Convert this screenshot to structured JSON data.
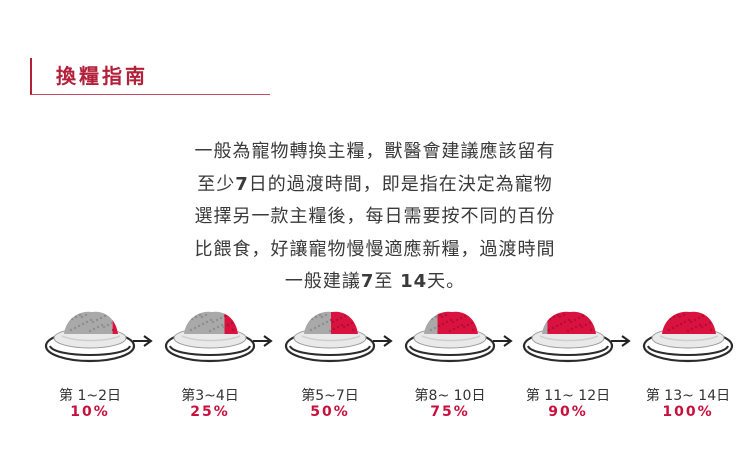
{
  "heading": {
    "title": "換糧指南",
    "accent_color": "#b3203a"
  },
  "intro": {
    "lines": [
      {
        "parts": [
          "一般為寵物轉換主糧，獸醫會建議應該留有"
        ]
      },
      {
        "parts": [
          "至少",
          "7",
          "日的過渡時間，即是指在決定為寵物"
        ]
      },
      {
        "parts": [
          "選擇另一款主糧後，每日需要按不同的百份"
        ]
      },
      {
        "parts": [
          "比餵食，好讓寵物慢慢適應新糧，過渡時間"
        ]
      },
      {
        "parts": [
          "一般建議",
          "7",
          "至 ",
          "14",
          "天。"
        ]
      }
    ]
  },
  "steps": [
    {
      "label": "第 1~2日",
      "percent": "10%",
      "new_food_fraction": 0.1
    },
    {
      "label": "第3~4日",
      "percent": "25%",
      "new_food_fraction": 0.25
    },
    {
      "label": "第5~7日",
      "percent": "50%",
      "new_food_fraction": 0.5
    },
    {
      "label": "第8~ 10日",
      "percent": "75%",
      "new_food_fraction": 0.75
    },
    {
      "label": "第 11~ 12日",
      "percent": "90%",
      "new_food_fraction": 0.9
    },
    {
      "label": "第 13~ 14日",
      "percent": "100%",
      "new_food_fraction": 1.0
    }
  ],
  "colors": {
    "new_food": "#d9123f",
    "old_food": "#a9a9a9",
    "percent_text": "#c8103e"
  },
  "icons": {
    "arrow": "arrow-right-icon",
    "bowl": "food-bowl-icon"
  }
}
